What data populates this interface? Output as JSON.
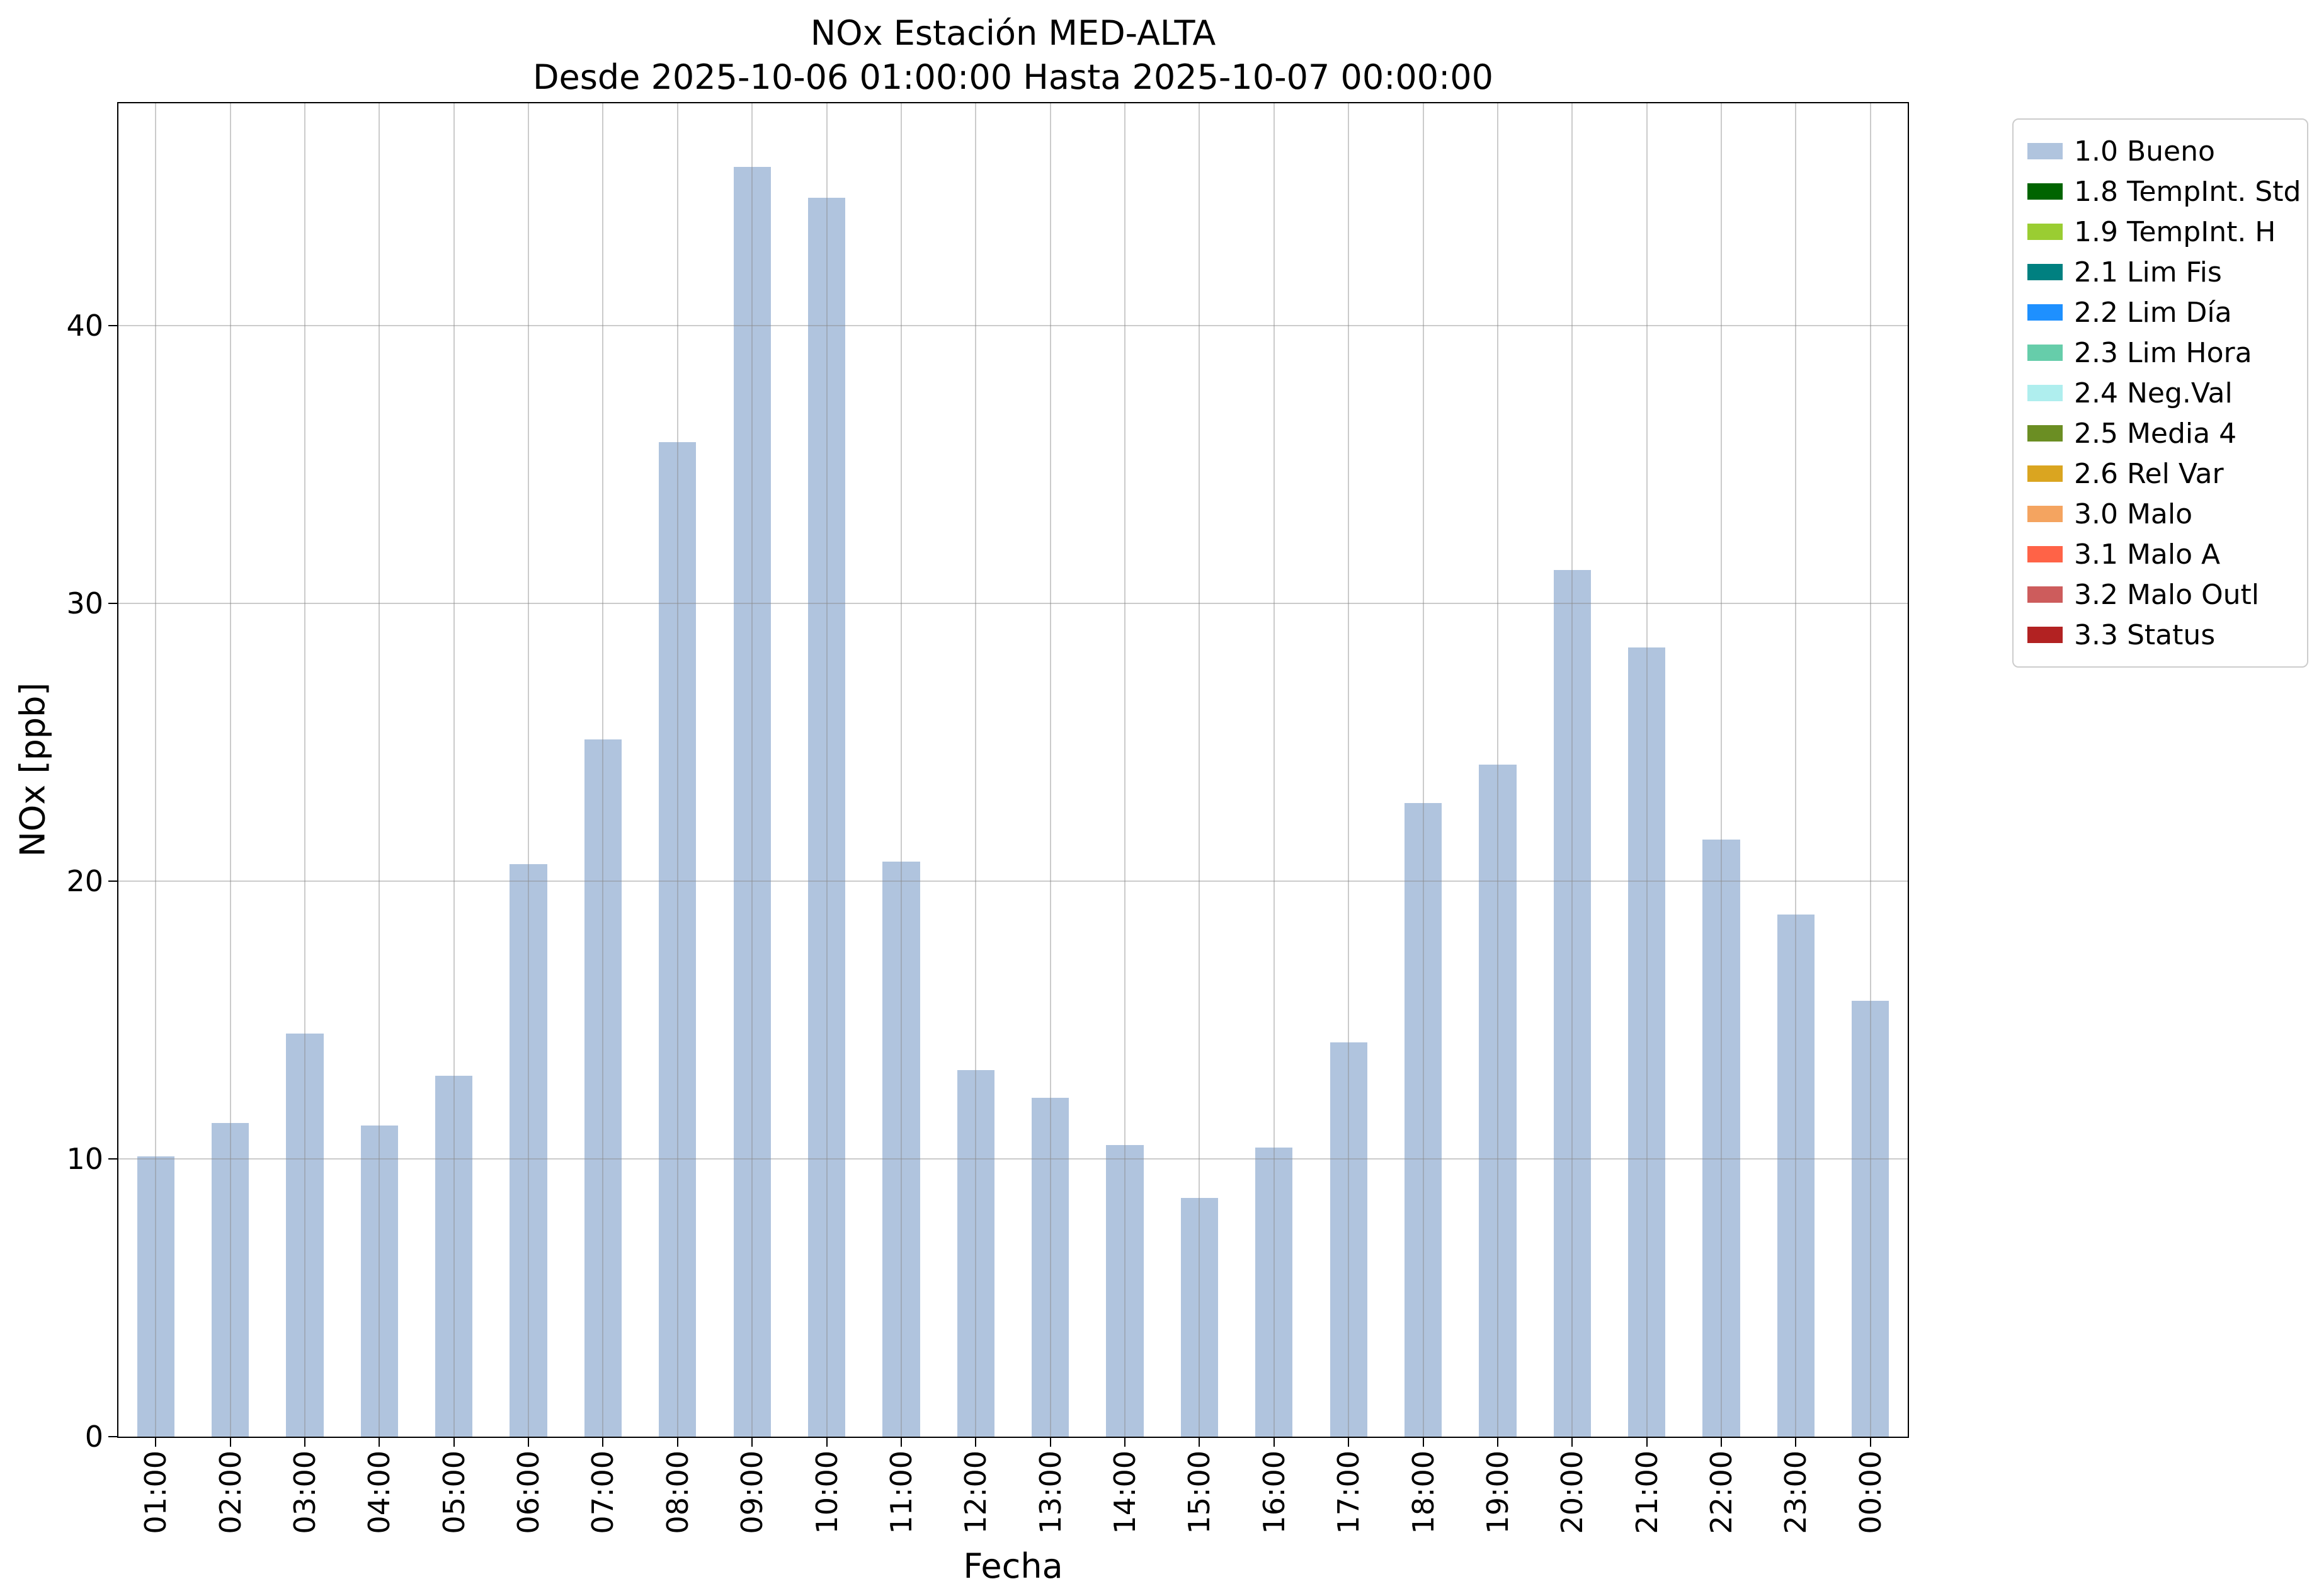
{
  "chart_data": {
    "type": "bar",
    "title": "NOx Estación MED-ALTA",
    "subtitle": "Desde 2025-10-06 01:00:00 Hasta 2025-10-07 00:00:00",
    "xlabel": "Fecha",
    "ylabel": "NOx [ppb]",
    "ylim": [
      0,
      48
    ],
    "yticks": [
      0,
      10,
      20,
      30,
      40
    ],
    "grid": true,
    "bar_color": "#b0c4de",
    "series_label": "1.0 Bueno",
    "categories": [
      "01:00",
      "02:00",
      "03:00",
      "04:00",
      "05:00",
      "06:00",
      "07:00",
      "08:00",
      "09:00",
      "10:00",
      "11:00",
      "12:00",
      "13:00",
      "14:00",
      "15:00",
      "16:00",
      "17:00",
      "18:00",
      "19:00",
      "20:00",
      "21:00",
      "22:00",
      "23:00",
      "00:00"
    ],
    "values": [
      10.1,
      11.3,
      14.5,
      11.2,
      13.0,
      20.6,
      25.1,
      35.8,
      45.7,
      44.6,
      20.7,
      13.2,
      12.2,
      10.5,
      8.6,
      10.4,
      14.2,
      22.8,
      24.2,
      31.2,
      28.4,
      21.5,
      18.8,
      15.7
    ],
    "legend": {
      "position": "right-top",
      "entries": [
        {
          "label": "1.0 Bueno",
          "color": "#b0c4de"
        },
        {
          "label": "1.8 TempInt. Std",
          "color": "#006400"
        },
        {
          "label": "1.9 TempInt. H",
          "color": "#9acd32"
        },
        {
          "label": "2.1 Lim Fis",
          "color": "#008080"
        },
        {
          "label": "2.2 Lim Día",
          "color": "#1e90ff"
        },
        {
          "label": "2.3 Lim Hora",
          "color": "#66cdaa"
        },
        {
          "label": "2.4 Neg.Val",
          "color": "#afeeee"
        },
        {
          "label": "2.5 Media 4",
          "color": "#6b8e23"
        },
        {
          "label": "2.6 Rel Var",
          "color": "#daa520"
        },
        {
          "label": "3.0 Malo",
          "color": "#f4a460"
        },
        {
          "label": "3.1 Malo A",
          "color": "#ff6347"
        },
        {
          "label": "3.2 Malo Outl",
          "color": "#cd5c5c"
        },
        {
          "label": "3.3 Status",
          "color": "#b22222"
        }
      ]
    }
  }
}
